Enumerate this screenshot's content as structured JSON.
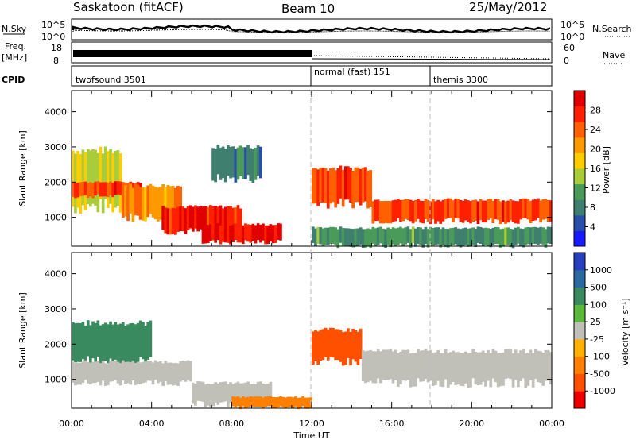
{
  "header": {
    "station": "Saskatoon (fitACF)",
    "beam": "Beam 10",
    "date": "25/May/2012"
  },
  "top_panels": {
    "nsky_label": "N.Sky",
    "nsky_ticks": [
      "10^5",
      "10^0"
    ],
    "nsearch_label": "N.Search",
    "nsearch_ticks": [
      "10^5",
      "10^0"
    ],
    "freq_label": "Freq.",
    "freq_unit": "[MHz]",
    "freq_ticks": [
      "18",
      "8"
    ],
    "nave_label": "Nave",
    "nave_ticks": [
      "60",
      "0"
    ],
    "cpid_label": "CPID"
  },
  "cpid_segments": [
    {
      "name": "twofsound",
      "id": "3501",
      "start": 0,
      "end": 12
    },
    {
      "name": "normal (fast)",
      "id": "151",
      "start": 12,
      "end": 18
    },
    {
      "name": "themis",
      "id": "3300",
      "start": 18,
      "end": 24
    }
  ],
  "colors": {
    "power_scale": [
      "#1a1aff",
      "#2a4fa8",
      "#3f7f6f",
      "#4a9a5a",
      "#a8cc3a",
      "#ffcc00",
      "#ff9900",
      "#ff6000",
      "#ff2000",
      "#e00000"
    ],
    "velocity_scale": [
      "#2840c0",
      "#2a6aa0",
      "#3a8a60",
      "#5ab83a",
      "#c0c0b8",
      "#ffb000",
      "#ff8000",
      "#ff5000",
      "#ee0000"
    ]
  },
  "chart_data": [
    {
      "type": "heatmap",
      "panel": "power",
      "ylabel": "Slant Range [km]",
      "yticks": [
        "1000",
        "2000",
        "3000",
        "4000"
      ],
      "ylim": [
        180,
        4600
      ],
      "xlim": [
        0,
        24
      ],
      "colorbar_label": "Power [dB]",
      "colorbar_ticks": [
        "4",
        "8",
        "12",
        "16",
        "20",
        "24",
        "28"
      ],
      "colorbar_range": [
        0,
        32
      ],
      "bands": [
        {
          "start": 0,
          "end": 2.5,
          "r0": 1300,
          "r1": 2900,
          "value": 16
        },
        {
          "start": 0,
          "end": 3.5,
          "r0": 1600,
          "r1": 2000,
          "value": 26
        },
        {
          "start": 2.5,
          "end": 5.5,
          "r0": 1000,
          "r1": 1900,
          "value": 22
        },
        {
          "start": 4.5,
          "end": 8.5,
          "r0": 600,
          "r1": 1300,
          "value": 28
        },
        {
          "start": 6.5,
          "end": 10.5,
          "r0": 300,
          "r1": 800,
          "value": 30
        },
        {
          "start": 7,
          "end": 9.5,
          "r0": 2100,
          "r1": 3000,
          "value": 8
        },
        {
          "start": 12,
          "end": 15,
          "r0": 1400,
          "r1": 2400,
          "value": 26
        },
        {
          "start": 15,
          "end": 24,
          "r0": 900,
          "r1": 1500,
          "value": 26
        },
        {
          "start": 12,
          "end": 24,
          "r0": 200,
          "r1": 700,
          "value": 10
        }
      ]
    },
    {
      "type": "heatmap",
      "panel": "velocity",
      "ylabel": "Slant Range [km]",
      "yticks": [
        "1000",
        "2000",
        "3000",
        "4000"
      ],
      "ylim": [
        180,
        4600
      ],
      "xlabel": "Time UT",
      "xticks": [
        "00:00",
        "04:00",
        "08:00",
        "12:00",
        "16:00",
        "20:00",
        "00:00"
      ],
      "xlim": [
        0,
        24
      ],
      "colorbar_label": "Velocity [m s⁻¹]",
      "colorbar_ticks": [
        "1000",
        "500",
        "100",
        "25",
        "-25",
        "-100",
        "-500",
        "-1000"
      ],
      "bands": [
        {
          "start": 0,
          "end": 4,
          "r0": 1500,
          "r1": 2600,
          "value": 100
        },
        {
          "start": 0,
          "end": 6,
          "r0": 900,
          "r1": 1500,
          "value": 0
        },
        {
          "start": 6,
          "end": 10,
          "r0": 300,
          "r1": 900,
          "value": 0
        },
        {
          "start": 8,
          "end": 12,
          "r0": 200,
          "r1": 500,
          "value": -150
        },
        {
          "start": 12,
          "end": 14.5,
          "r0": 1500,
          "r1": 2400,
          "value": -600
        },
        {
          "start": 14.5,
          "end": 24,
          "r0": 900,
          "r1": 1800,
          "value": 0
        }
      ]
    }
  ]
}
